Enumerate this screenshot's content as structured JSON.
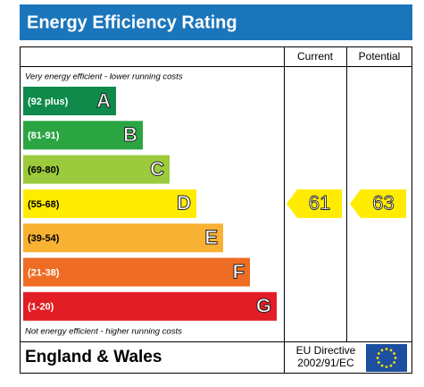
{
  "chart_data": {
    "type": "epc",
    "title": "Energy Efficiency Rating",
    "top_note": "Very energy efficient - lower running costs",
    "bottom_note": "Not energy efficient - higher running costs",
    "bands": [
      {
        "range": "(92 plus)",
        "letter": "A",
        "color": "#0f8a4b"
      },
      {
        "range": "(81-91)",
        "letter": "B",
        "color": "#2aa542"
      },
      {
        "range": "(69-80)",
        "letter": "C",
        "color": "#9bcb3c"
      },
      {
        "range": "(55-68)",
        "letter": "D",
        "color": "#ffec00"
      },
      {
        "range": "(39-54)",
        "letter": "E",
        "color": "#f8b133"
      },
      {
        "range": "(21-38)",
        "letter": "F",
        "color": "#ee6c23"
      },
      {
        "range": "(1-20)",
        "letter": "G",
        "color": "#e31d24"
      }
    ],
    "current": {
      "name": "Current",
      "value": 61
    },
    "potential": {
      "name": "Potential",
      "value": 63
    },
    "region": "England & Wales",
    "directive": [
      "EU Directive",
      "2002/91/EC"
    ]
  }
}
